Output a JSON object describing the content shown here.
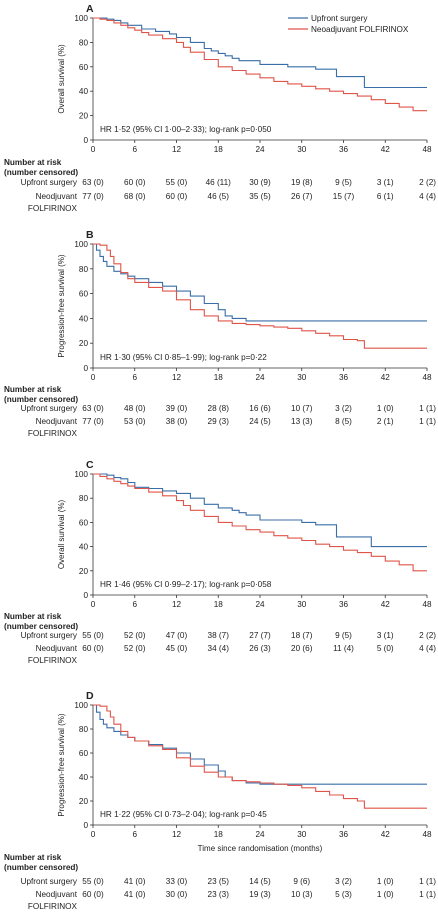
{
  "colors": {
    "upfront": "#3a6ea8",
    "neoadjuvant": "#e0554a",
    "axis": "#333333",
    "text": "#222222"
  },
  "legend": {
    "upfront": "Upfront surgery",
    "neoadjuvant": "Neoadjuvant FOLFIRINOX"
  },
  "risk_table": {
    "header_line1": "Number at risk",
    "header_line2": "(number censored)",
    "row_upfront": "Upfront surgery",
    "row_neo_line1": "Neodjuvant",
    "row_neo_line2": "FOLFIRINOX"
  },
  "chart_data": [
    {
      "panel": "A",
      "type": "line",
      "ylabel": "Overall survival (%)",
      "xlabel": "",
      "xlim": [
        0,
        48
      ],
      "ylim": [
        0,
        100
      ],
      "xticks": [
        0,
        6,
        12,
        18,
        24,
        30,
        36,
        42,
        48
      ],
      "yticks": [
        0,
        20,
        40,
        60,
        80,
        100
      ],
      "annotation": "HR 1·52 (95% CI 1·00–2·33); log-rank p=0·050",
      "series": [
        {
          "name": "Upfront surgery",
          "key": "upfront",
          "x": [
            0,
            2,
            3,
            4,
            5,
            7,
            9,
            11,
            12,
            14,
            16,
            17,
            18,
            19,
            20,
            21,
            22,
            24,
            26,
            28,
            30,
            32,
            33,
            34,
            35,
            36,
            38,
            39,
            42,
            48
          ],
          "y": [
            100,
            99,
            98,
            96,
            94,
            91,
            89,
            87,
            84,
            80,
            75,
            73,
            71,
            69,
            67,
            65,
            65,
            62,
            62,
            60,
            60,
            58,
            58,
            58,
            52,
            52,
            52,
            43,
            43,
            43
          ]
        },
        {
          "name": "Neoadjuvant FOLFIRINOX",
          "key": "neoadjuvant",
          "x": [
            0,
            1,
            2,
            3,
            4,
            5,
            6,
            7,
            8,
            10,
            12,
            13,
            14,
            16,
            18,
            20,
            22,
            24,
            26,
            28,
            30,
            32,
            34,
            36,
            38,
            40,
            42,
            44,
            46,
            48
          ],
          "y": [
            100,
            99,
            98,
            96,
            94,
            92,
            90,
            88,
            86,
            83,
            80,
            76,
            72,
            66,
            60,
            57,
            54,
            51,
            48,
            46,
            44,
            42,
            40,
            38,
            36,
            33,
            30,
            27,
            24,
            24
          ]
        }
      ],
      "risk": {
        "upfront": [
          "63 (0)",
          "60 (0)",
          "55 (0)",
          "46 (11)",
          "30 (9)",
          "19 (8)",
          "9 (5)",
          "3 (1)",
          "2 (2)"
        ],
        "neoadjuvant": [
          "77 (0)",
          "68 (0)",
          "60 (0)",
          "46 (5)",
          "35 (5)",
          "26 (7)",
          "15 (7)",
          "6 (1)",
          "4 (4)"
        ]
      }
    },
    {
      "panel": "B",
      "type": "line",
      "ylabel": "Progression-free survival (%)",
      "xlabel": "",
      "xlim": [
        0,
        48
      ],
      "ylim": [
        0,
        100
      ],
      "xticks": [
        0,
        6,
        12,
        18,
        24,
        30,
        36,
        42,
        48
      ],
      "yticks": [
        0,
        20,
        40,
        60,
        80,
        100
      ],
      "annotation": "HR 1·30 (95% CI 0·85–1·99); log-rank p=0·22",
      "series": [
        {
          "name": "Upfront surgery",
          "key": "upfront",
          "x": [
            0,
            0.5,
            1,
            1.5,
            2,
            3,
            4,
            5,
            6,
            8,
            10,
            12,
            14,
            16,
            18,
            19,
            20,
            22,
            24,
            30,
            36,
            42,
            48
          ],
          "y": [
            100,
            95,
            90,
            86,
            82,
            78,
            76,
            74,
            72,
            69,
            66,
            62,
            58,
            52,
            47,
            42,
            40,
            38,
            38,
            38,
            38,
            38,
            38
          ]
        },
        {
          "name": "Neoadjuvant FOLFIRINOX",
          "key": "neoadjuvant",
          "x": [
            0,
            1,
            2,
            2.5,
            3,
            4,
            5,
            6,
            8,
            10,
            12,
            14,
            16,
            18,
            20,
            22,
            24,
            26,
            28,
            30,
            32,
            34,
            36,
            38,
            39,
            42,
            44,
            48
          ],
          "y": [
            100,
            99,
            95,
            90,
            84,
            77,
            72,
            69,
            65,
            62,
            55,
            47,
            42,
            38,
            36,
            35,
            34,
            33,
            32,
            30,
            28,
            26,
            23,
            22,
            16,
            16,
            16,
            16
          ]
        }
      ],
      "risk": {
        "upfront": [
          "63 (0)",
          "48 (0)",
          "39 (0)",
          "28 (8)",
          "16 (6)",
          "10 (7)",
          "3 (2)",
          "1 (0)",
          "1 (1)"
        ],
        "neoadjuvant": [
          "77 (0)",
          "53 (0)",
          "38 (0)",
          "29 (3)",
          "24 (5)",
          "13 (3)",
          "8 (5)",
          "2 (1)",
          "1 (1)"
        ]
      }
    },
    {
      "panel": "C",
      "type": "line",
      "ylabel": "Overall survival (%)",
      "xlabel": "",
      "xlim": [
        0,
        48
      ],
      "ylim": [
        0,
        100
      ],
      "xticks": [
        0,
        6,
        12,
        18,
        24,
        30,
        36,
        42,
        48
      ],
      "yticks": [
        0,
        20,
        40,
        60,
        80,
        100
      ],
      "annotation": "HR 1·46 (95% CI 0·99–2·17); log-rank p=0·058",
      "series": [
        {
          "name": "Upfront surgery",
          "key": "upfront",
          "x": [
            0,
            2,
            3,
            4,
            5,
            6,
            8,
            10,
            12,
            14,
            16,
            18,
            20,
            21,
            22,
            24,
            26,
            28,
            30,
            32,
            34,
            35,
            36,
            38,
            40,
            42,
            48
          ],
          "y": [
            100,
            99,
            97,
            96,
            93,
            89,
            88,
            86,
            84,
            80,
            75,
            72,
            70,
            68,
            66,
            62,
            62,
            62,
            60,
            58,
            58,
            48,
            48,
            48,
            40,
            40,
            40
          ]
        },
        {
          "name": "Neoadjuvant FOLFIRINOX",
          "key": "neoadjuvant",
          "x": [
            0,
            1,
            2,
            3,
            4,
            5,
            6,
            8,
            10,
            12,
            13,
            14,
            16,
            18,
            20,
            22,
            24,
            26,
            28,
            30,
            32,
            34,
            36,
            38,
            40,
            42,
            44,
            46,
            48
          ],
          "y": [
            100,
            98,
            96,
            94,
            92,
            90,
            88,
            85,
            82,
            78,
            74,
            70,
            65,
            60,
            57,
            54,
            52,
            49,
            47,
            45,
            42,
            40,
            37,
            35,
            32,
            28,
            25,
            20,
            20
          ]
        }
      ],
      "risk": {
        "upfront": [
          "55 (0)",
          "52 (0)",
          "47 (0)",
          "38 (7)",
          "27 (7)",
          "18 (7)",
          "9 (5)",
          "3 (1)",
          "2 (2)"
        ],
        "neoadjuvant": [
          "60 (0)",
          "52 (0)",
          "45 (0)",
          "34 (4)",
          "26 (3)",
          "20 (6)",
          "11 (4)",
          "5 (0)",
          "4 (4)"
        ]
      }
    },
    {
      "panel": "D",
      "type": "line",
      "ylabel": "Progression-free survival (%)",
      "xlabel": "Time since randomisation (months)",
      "xlim": [
        0,
        48
      ],
      "ylim": [
        0,
        100
      ],
      "xticks": [
        0,
        6,
        12,
        18,
        24,
        30,
        36,
        42,
        48
      ],
      "yticks": [
        0,
        20,
        40,
        60,
        80,
        100
      ],
      "annotation": "HR 1·22 (95% CI 0·73–2·04); log-rank p=0·45",
      "series": [
        {
          "name": "Upfront surgery",
          "key": "upfront",
          "x": [
            0,
            0.5,
            1,
            1.5,
            2,
            3,
            4,
            5,
            6,
            8,
            10,
            12,
            14,
            16,
            18,
            19,
            20,
            22,
            24,
            30,
            36,
            42,
            48
          ],
          "y": [
            100,
            94,
            88,
            84,
            81,
            78,
            75,
            73,
            70,
            67,
            64,
            60,
            55,
            50,
            45,
            40,
            37,
            35,
            34,
            34,
            34,
            34,
            34
          ]
        },
        {
          "name": "Neoadjuvant FOLFIRINOX",
          "key": "neoadjuvant",
          "x": [
            0,
            1,
            2,
            2.5,
            3,
            4,
            5,
            6,
            8,
            10,
            12,
            14,
            16,
            18,
            20,
            22,
            24,
            26,
            28,
            30,
            32,
            34,
            36,
            38,
            39,
            42,
            44,
            48
          ],
          "y": [
            100,
            99,
            95,
            90,
            84,
            78,
            73,
            70,
            66,
            63,
            56,
            49,
            44,
            40,
            37,
            36,
            35,
            34,
            33,
            31,
            28,
            25,
            22,
            20,
            14,
            14,
            14,
            14
          ]
        }
      ],
      "risk": {
        "upfront": [
          "55 (0)",
          "41 (0)",
          "33 (0)",
          "23 (5)",
          "14 (5)",
          "9 (6)",
          "3 (2)",
          "1 (0)",
          "1 (1)"
        ],
        "neoadjuvant": [
          "60 (0)",
          "41 (0)",
          "30 (0)",
          "23 (3)",
          "19 (3)",
          "10 (3)",
          "5 (3)",
          "1 (0)",
          "1 (1)"
        ]
      }
    }
  ]
}
